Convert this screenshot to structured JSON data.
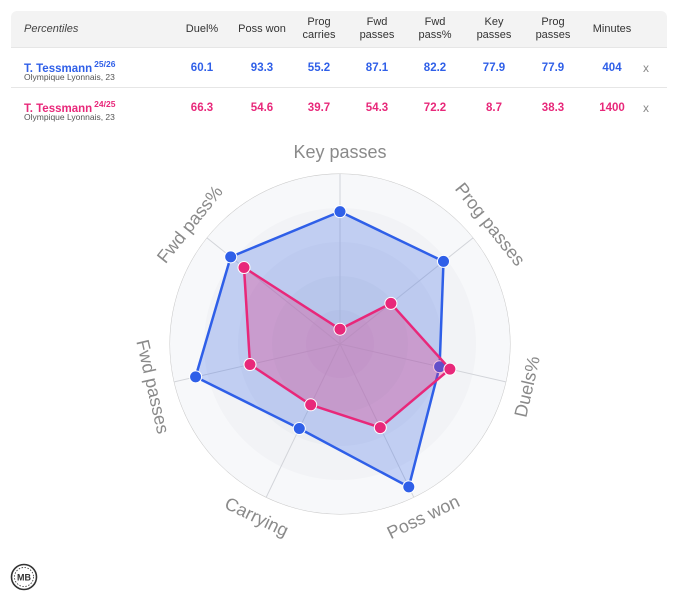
{
  "table": {
    "headers": [
      "Percentiles",
      "Duel%",
      "Poss won",
      "Prog\ncarries",
      "Fwd\npasses",
      "Fwd\npass%",
      "Key\npasses",
      "Prog\npasses",
      "Minutes"
    ],
    "rows": [
      {
        "name": "T. Tessmann",
        "season": "25/26",
        "team": "Olympique Lyonnais, 23",
        "color": "#2f5fe8",
        "values": [
          "60.1",
          "93.3",
          "55.2",
          "87.1",
          "82.2",
          "77.9",
          "77.9",
          "404"
        ],
        "remove": "x"
      },
      {
        "name": "T. Tessmann",
        "season": "24/25",
        "team": "Olympique Lyonnais, 23",
        "color": "#e8287a",
        "values": [
          "66.3",
          "54.6",
          "39.7",
          "54.3",
          "72.2",
          "8.7",
          "38.3",
          "1400"
        ],
        "remove": "x"
      }
    ]
  },
  "chart_data": {
    "type": "radar",
    "axes": [
      "Key passes",
      "Prog passes",
      "Duels%",
      "Poss won",
      "Carrying",
      "Fwd passes",
      "Fwd pass%"
    ],
    "range": [
      0,
      100
    ],
    "series": [
      {
        "name": "T. Tessmann 25/26",
        "color": "#2f5fe8",
        "values": [
          77.9,
          77.9,
          60.1,
          93.3,
          55.2,
          87.1,
          82.2
        ]
      },
      {
        "name": "T. Tessmann 24/25",
        "color": "#e8287a",
        "values": [
          8.7,
          38.3,
          66.3,
          54.6,
          39.7,
          54.3,
          72.2
        ]
      }
    ]
  },
  "logo": {
    "text": "MB"
  }
}
